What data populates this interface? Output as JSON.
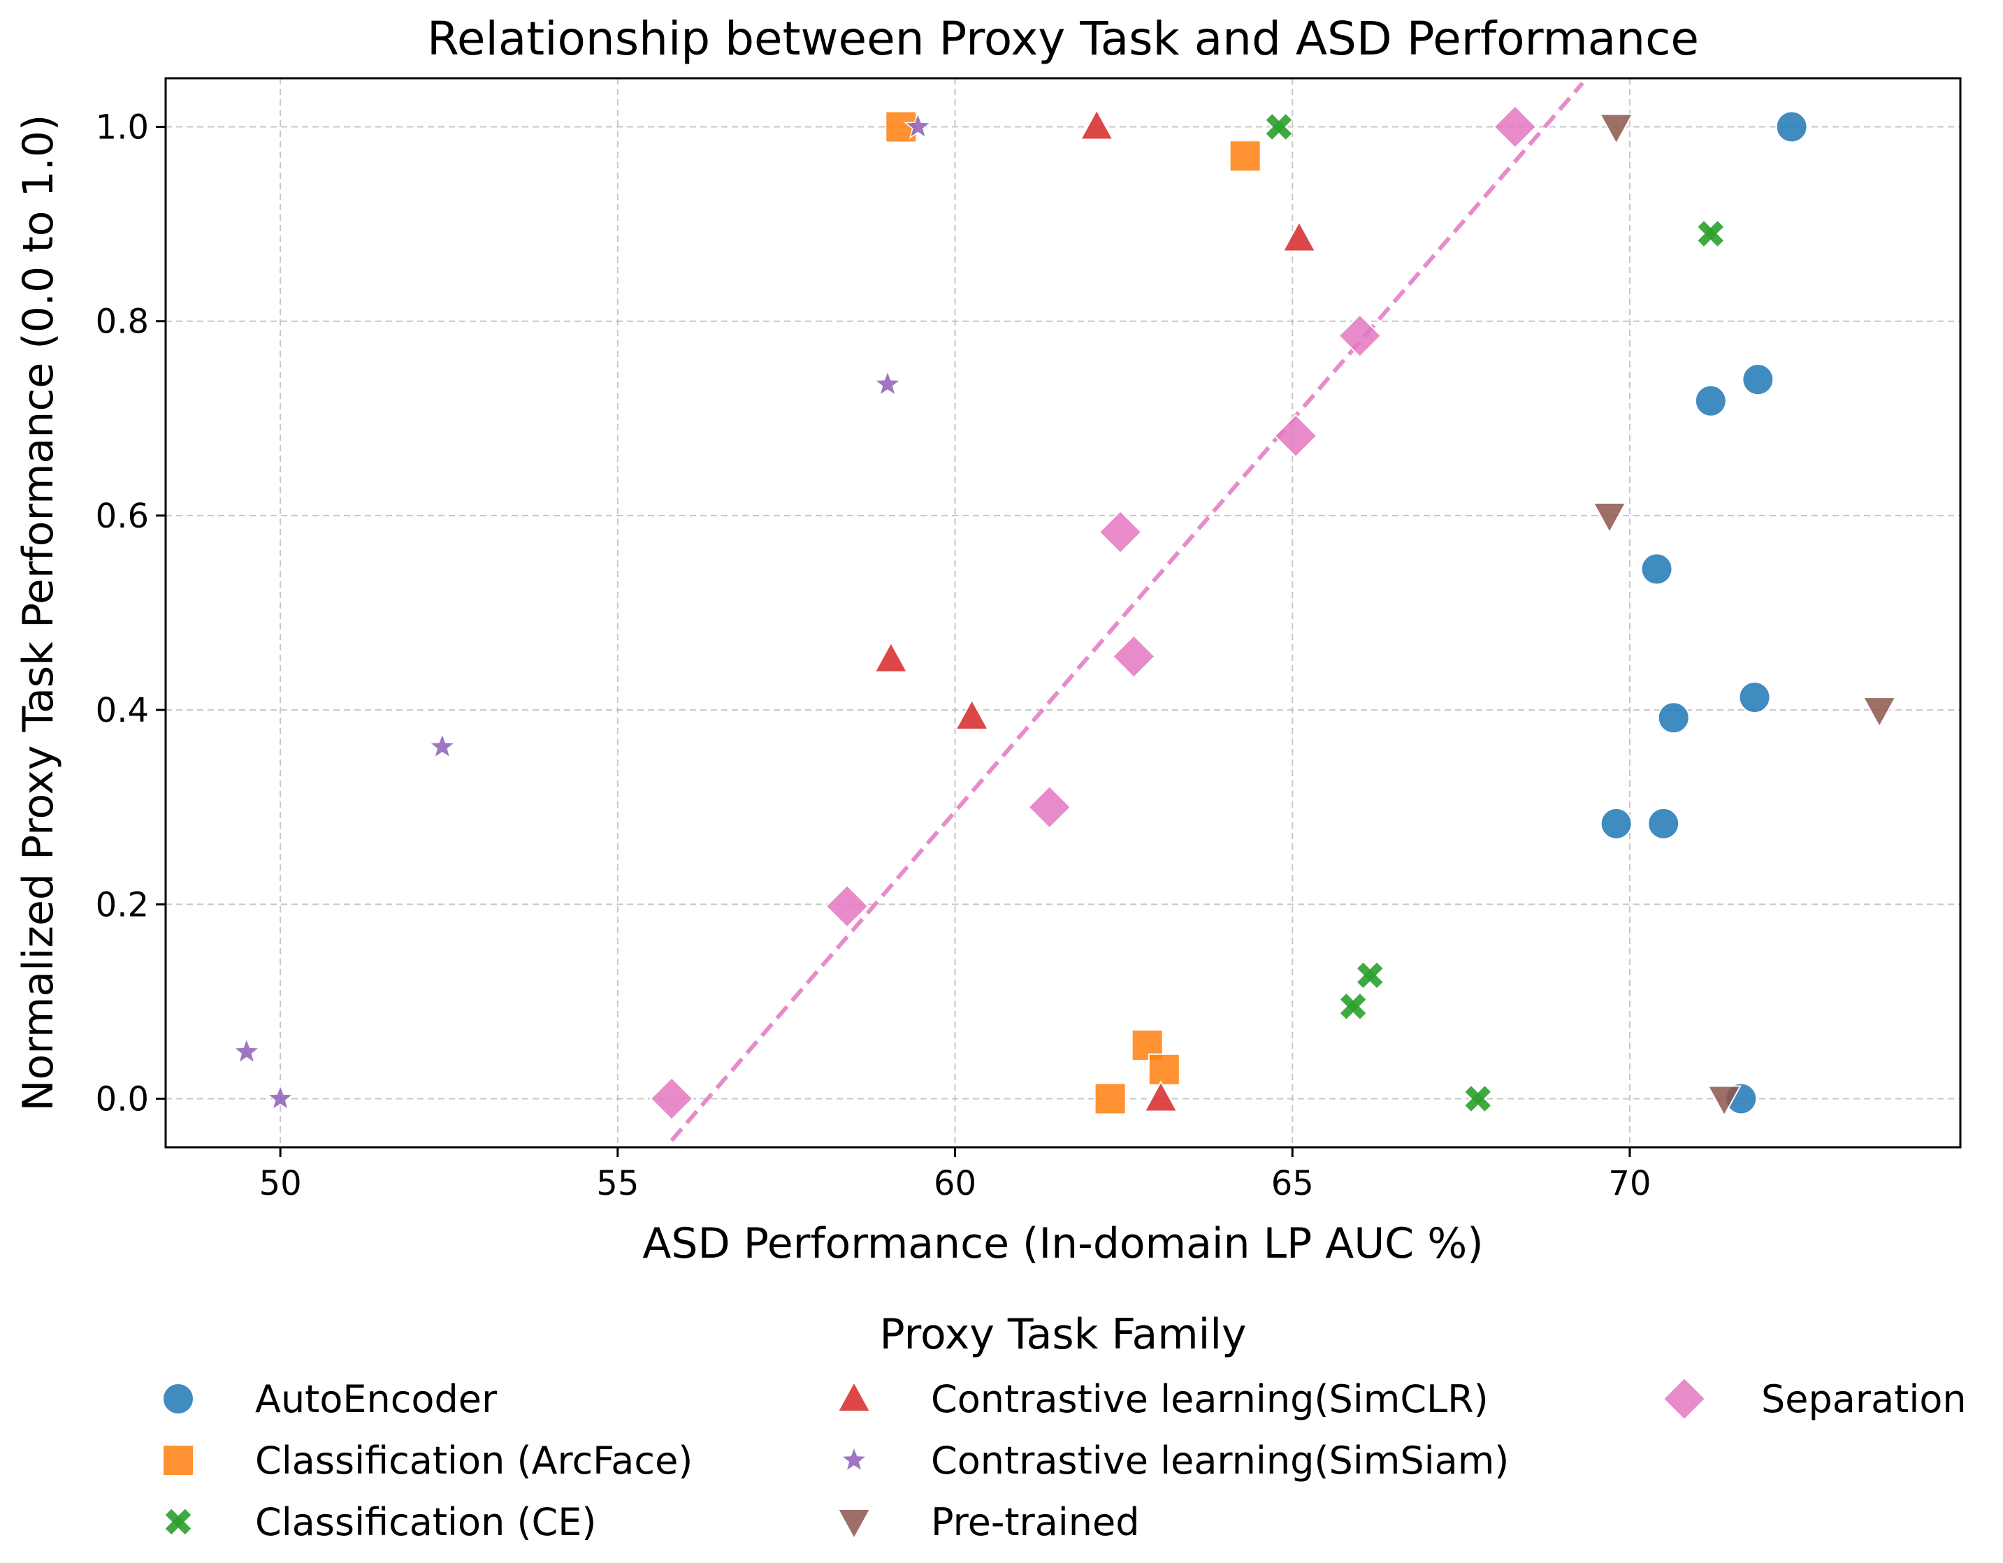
{
  "chart_data": {
    "type": "scatter",
    "title": "Relationship between Proxy Task and ASD Performance",
    "xlabel": "ASD Performance (In-domain LP AUC %)",
    "ylabel": "Normalized Proxy Task Performance (0.0 to 1.0)",
    "xlim": [
      48.3,
      74.9
    ],
    "ylim": [
      -0.05,
      1.05
    ],
    "xticks": [
      50,
      55,
      60,
      65,
      70
    ],
    "xtick_labels": [
      "50",
      "55",
      "60",
      "65",
      "70"
    ],
    "yticks": [
      0.0,
      0.2,
      0.4,
      0.6,
      0.8,
      1.0
    ],
    "ytick_labels": [
      "0.0",
      "0.2",
      "0.4",
      "0.6",
      "0.8",
      "1.0"
    ],
    "grid": true,
    "legend": {
      "title": "Proxy Task Family",
      "placement": "below-center",
      "columns": 3
    },
    "series": [
      {
        "name": "AutoEncoder",
        "color": "#1f77b4",
        "marker": "circle",
        "points": [
          [
            72.4,
            1.0
          ],
          [
            71.9,
            0.74
          ],
          [
            71.2,
            0.718
          ],
          [
            70.4,
            0.545
          ],
          [
            71.85,
            0.413
          ],
          [
            70.65,
            0.392
          ],
          [
            69.8,
            0.283
          ],
          [
            70.5,
            0.283
          ],
          [
            71.65,
            0.0
          ]
        ]
      },
      {
        "name": "Classification (ArcFace)",
        "color": "#ff7f0e",
        "marker": "square",
        "points": [
          [
            59.2,
            1.0
          ],
          [
            64.3,
            0.97
          ],
          [
            62.85,
            0.055
          ],
          [
            63.1,
            0.03
          ],
          [
            62.3,
            0.0
          ]
        ]
      },
      {
        "name": "Classification (CE)",
        "color": "#2ca02c",
        "marker": "x",
        "points": [
          [
            64.8,
            1.0
          ],
          [
            71.2,
            0.89
          ],
          [
            66.15,
            0.127
          ],
          [
            65.9,
            0.095
          ],
          [
            67.75,
            0.0
          ]
        ]
      },
      {
        "name": "Contrastive learning(SimCLR)",
        "color": "#d62728",
        "marker": "triangle-up",
        "points": [
          [
            62.1,
            1.0
          ],
          [
            65.1,
            0.885
          ],
          [
            59.05,
            0.452
          ],
          [
            60.25,
            0.393
          ],
          [
            63.05,
            0.0
          ]
        ]
      },
      {
        "name": "Contrastive learning(SimSiam)",
        "color": "#9467bd",
        "marker": "star",
        "points": [
          [
            59.45,
            1.0
          ],
          [
            59.0,
            0.735
          ],
          [
            52.4,
            0.362
          ],
          [
            49.5,
            0.048
          ],
          [
            50.0,
            0.0
          ]
        ]
      },
      {
        "name": "Pre-trained",
        "color": "#8c564b",
        "marker": "triangle-down",
        "points": [
          [
            69.8,
            1.0
          ],
          [
            69.7,
            0.6
          ],
          [
            73.7,
            0.4
          ],
          [
            71.4,
            0.0
          ]
        ]
      },
      {
        "name": "Separation",
        "color": "#e377c2",
        "marker": "diamond",
        "points": [
          [
            68.3,
            1.0
          ],
          [
            66.0,
            0.785
          ],
          [
            65.05,
            0.682
          ],
          [
            62.45,
            0.583
          ],
          [
            62.65,
            0.455
          ],
          [
            61.4,
            0.3
          ],
          [
            58.4,
            0.198
          ],
          [
            55.8,
            0.0
          ]
        ]
      }
    ],
    "trendline": {
      "series": "Separation",
      "color": "#e377c2",
      "style": "dashed",
      "points": [
        [
          55.8,
          -0.043
        ],
        [
          69.3,
          1.045
        ]
      ]
    }
  }
}
